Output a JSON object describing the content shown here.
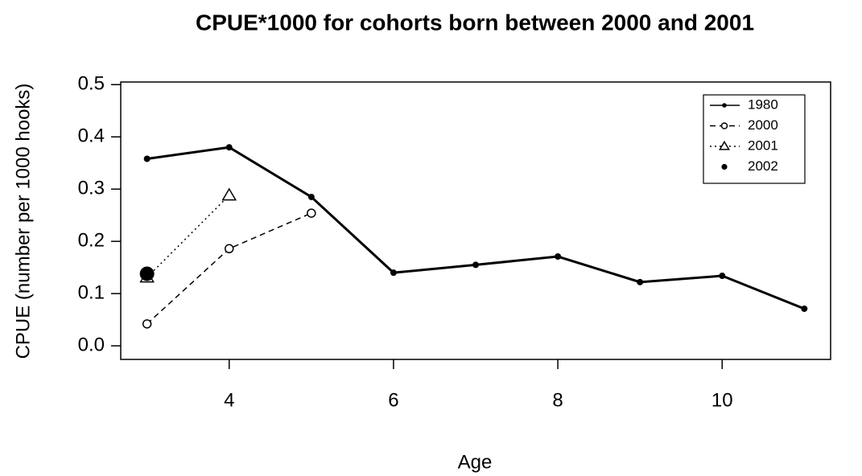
{
  "chart_data": {
    "type": "line",
    "title": "CPUE*1000 for cohorts born between 2000 and 2001",
    "x_label": "Age",
    "y_label": "CPUE (number per 1000 hooks)",
    "xlim": [
      2.68,
      11.32
    ],
    "xticks": [
      4,
      6,
      8,
      10
    ],
    "ylim": [
      -0.026,
      0.505
    ],
    "yticks": [
      {
        "value": 0,
        "label": "0.0"
      },
      0.1,
      0.2,
      0.3,
      0.4,
      0.5
    ],
    "legend": "top-right",
    "series": [
      {
        "name": "1980",
        "color": "#000000",
        "line": "solid",
        "marker": "filled-circle",
        "x": [
          3,
          4,
          5,
          6,
          7,
          8,
          9,
          10,
          11
        ],
        "values": [
          0.358,
          0.38,
          0.285,
          0.14,
          0.155,
          0.171,
          0.122,
          0.134,
          0.071
        ]
      },
      {
        "name": "2000",
        "color": "#000000",
        "line": "dashed",
        "marker": "open-circle",
        "x": [
          3,
          4,
          5
        ],
        "values": [
          0.042,
          0.186,
          0.254
        ]
      },
      {
        "name": "2001",
        "color": "#000000",
        "line": "dotted",
        "marker": "triangle",
        "x": [
          3,
          4
        ],
        "values": [
          0.131,
          0.288
        ]
      },
      {
        "name": "2002",
        "color": "#000000",
        "line": "none",
        "marker": "big-filled-circle",
        "x": [
          3
        ],
        "values": [
          0.138
        ]
      }
    ]
  }
}
